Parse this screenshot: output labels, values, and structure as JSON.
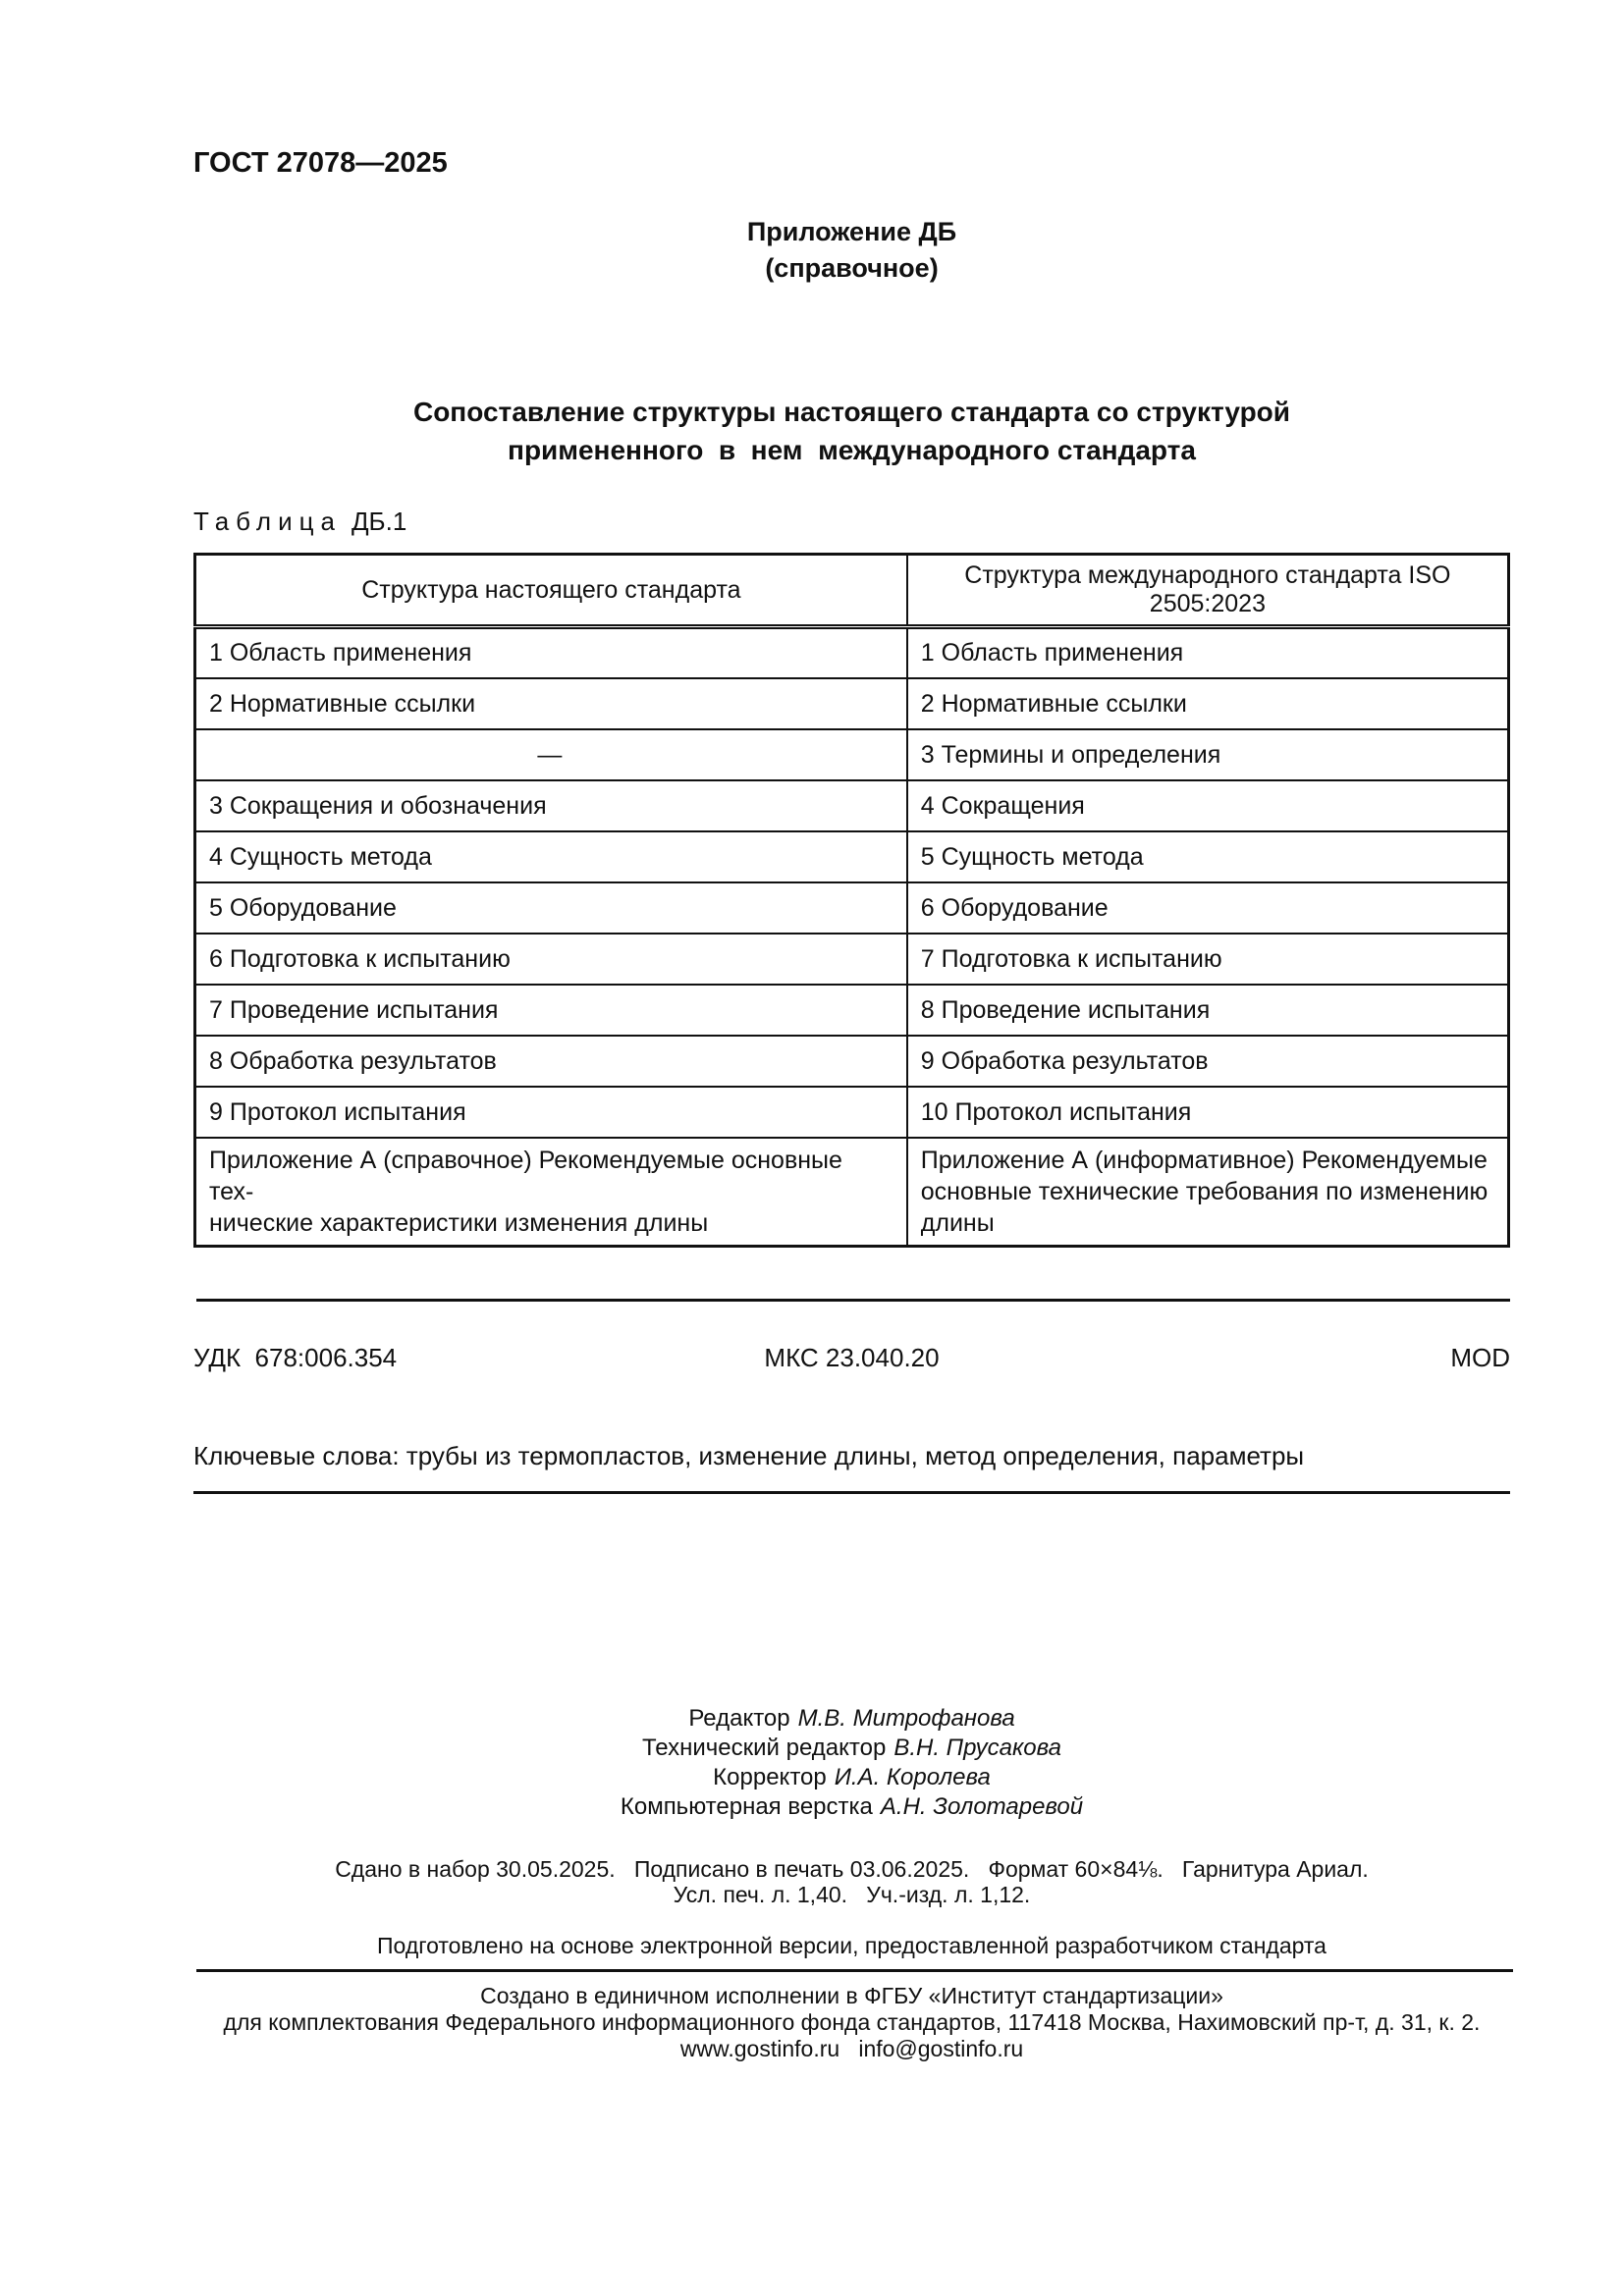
{
  "page": {
    "doc_code": "ГОСТ 27078—2025",
    "annex_label": "Приложение ДБ",
    "annex_type": "(справочное)",
    "title_lines": [
      "Сопоставление структуры настоящего стандарта со структурой",
      "примененного  в  нем  международного стандарта"
    ],
    "table_caption_word": "Таблица",
    "table_caption_number": "ДБ.1"
  },
  "table": {
    "headers": [
      "Структура настоящего стандарта",
      "Структура международного стандарта ISO 2505:2023"
    ],
    "rows": [
      [
        "1 Область применения",
        "1 Область применения"
      ],
      [
        "2 Нормативные ссылки",
        "2 Нормативные ссылки"
      ],
      [
        "—",
        "3 Термины и определения"
      ],
      [
        "3 Сокращения и обозначения",
        "4 Сокращения"
      ],
      [
        "4 Сущность метода",
        "5 Сущность метода"
      ],
      [
        "5 Оборудование",
        "6 Оборудование"
      ],
      [
        "6 Подготовка к испытанию",
        "7 Подготовка к испытанию"
      ],
      [
        "7 Проведение испытания",
        "8 Проведение испытания"
      ],
      [
        "8 Обработка результатов",
        "9 Обработка результатов"
      ],
      [
        "9 Протокол испытания",
        "10 Протокол испытания"
      ],
      [
        [
          "Приложение А (справочное) Рекомендуемые основные тех-",
          "нические характеристики изменения длины"
        ],
        [
          "Приложение А (информативное) Рекомендуемые",
          "основные технические требования по изменению",
          "длины"
        ]
      ]
    ]
  },
  "codes": {
    "udk": "УДК  678:006.354",
    "mks": "МКС 23.040.20",
    "mod": "MOD"
  },
  "keywords": "Ключевые слова: трубы из термопластов, изменение длины, метод определения, параметры",
  "credits": [
    {
      "role": "Редактор",
      "name": "М.В. Митрофанова"
    },
    {
      "role": "Технический редактор",
      "name": "В.Н. Прусакова"
    },
    {
      "role": "Корректор",
      "name": "И.А. Королева"
    },
    {
      "role": "Компьютерная верстка",
      "name": "А.Н. Золотаревой"
    }
  ],
  "imprint": {
    "line1": "Сдано в набор 30.05.2025.   Подписано в печать 03.06.2025.   Формат 60×84⅛.   Гарнитура Ариал.",
    "line2": "Усл. печ. л. 1,40.   Уч.-изд. л. 1,12.",
    "prepared": "Подготовлено на основе электронной версии, предоставленной разработчиком стандарта"
  },
  "footer": {
    "lines": [
      "Создано в единичном исполнении в ФГБУ «Институт стандартизации»",
      "для комплектования Федерального информационного фонда стандартов, 117418 Москва, Нахимовский пр-т, д. 31, к. 2.",
      "www.gostinfo.ru   info@gostinfo.ru"
    ]
  }
}
